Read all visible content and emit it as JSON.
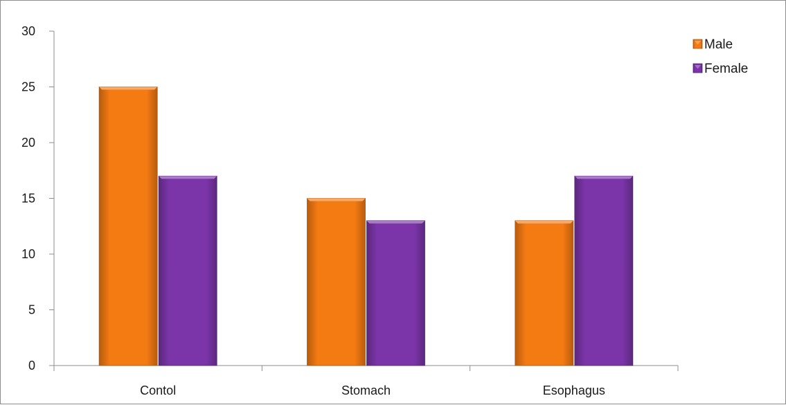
{
  "chart_data": {
    "type": "bar",
    "categories": [
      "Contol",
      "Stomach",
      "Esophagus"
    ],
    "series": [
      {
        "name": "Male",
        "values": [
          25,
          15,
          13
        ],
        "color": "#f47a12"
      },
      {
        "name": "Female",
        "values": [
          17,
          13,
          17
        ],
        "color": "#7b35a8"
      }
    ],
    "ylim": [
      0,
      30
    ],
    "yticks": [
      0,
      5,
      10,
      15,
      20,
      25,
      30
    ],
    "grid": false,
    "legend_position": "top-right"
  }
}
